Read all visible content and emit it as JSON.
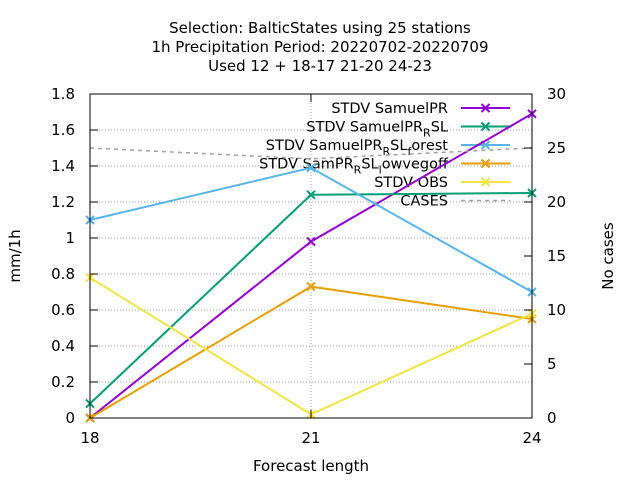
{
  "chart_data": {
    "type": "line",
    "title_lines": [
      "Selection: BalticStates using    25 stations",
      "1h Precipitation   Period: 20220702-20220709",
      "Used  12 + 18-17 21-20 24-23"
    ],
    "xlabel": "Forecast length",
    "ylabel": "mm/1h",
    "y2label": "No cases",
    "x": [
      18,
      21,
      24
    ],
    "x_ticks": [
      "18",
      "21",
      "24"
    ],
    "xlim": [
      18,
      24
    ],
    "ylim": [
      0,
      1.8
    ],
    "y_ticks": [
      "0",
      "0.2",
      "0.4",
      "0.6",
      "0.8",
      "1",
      "1.2",
      "1.4",
      "1.6",
      "1.8"
    ],
    "y2lim": [
      0,
      30
    ],
    "y2_ticks": [
      "0",
      "5",
      "10",
      "15",
      "20",
      "25",
      "30"
    ],
    "grid": true,
    "legend_position": "top-right",
    "series": [
      {
        "name": "STDV SamuelPR",
        "color": "#9400d3",
        "axis": "y",
        "marker": "x",
        "values": [
          0.0,
          0.98,
          1.69
        ]
      },
      {
        "name": "STDV SamuelPR_R SL",
        "label_parts": [
          "STDV SamuelPR",
          "R",
          "SL"
        ],
        "color": "#009e73",
        "axis": "y",
        "marker": "x",
        "values": [
          0.08,
          1.24,
          1.25
        ]
      },
      {
        "name": "STDV SamuelPR_R SL_forest",
        "label_parts": [
          "STDV SamuelPR",
          "R",
          "SL",
          "f",
          "orest"
        ],
        "color": "#56b4e9",
        "axis": "y",
        "marker": "x",
        "values": [
          1.1,
          1.39,
          0.7
        ]
      },
      {
        "name": "STDV SamPR_R SL_lowvegoff",
        "label_parts": [
          "STDV SamPR",
          "R",
          "SL",
          "l",
          "owvegoff"
        ],
        "color": "#e69f00",
        "axis": "y",
        "marker": "x",
        "values": [
          0.0,
          0.73,
          0.55
        ]
      },
      {
        "name": "STDV OBS",
        "color": "#f0e442",
        "axis": "y",
        "marker": "x",
        "values": [
          0.78,
          0.02,
          0.58
        ]
      },
      {
        "name": "CASES",
        "color": "#a0a0a0",
        "axis": "y2",
        "dashed": true,
        "values": [
          25,
          24,
          25
        ]
      }
    ]
  }
}
